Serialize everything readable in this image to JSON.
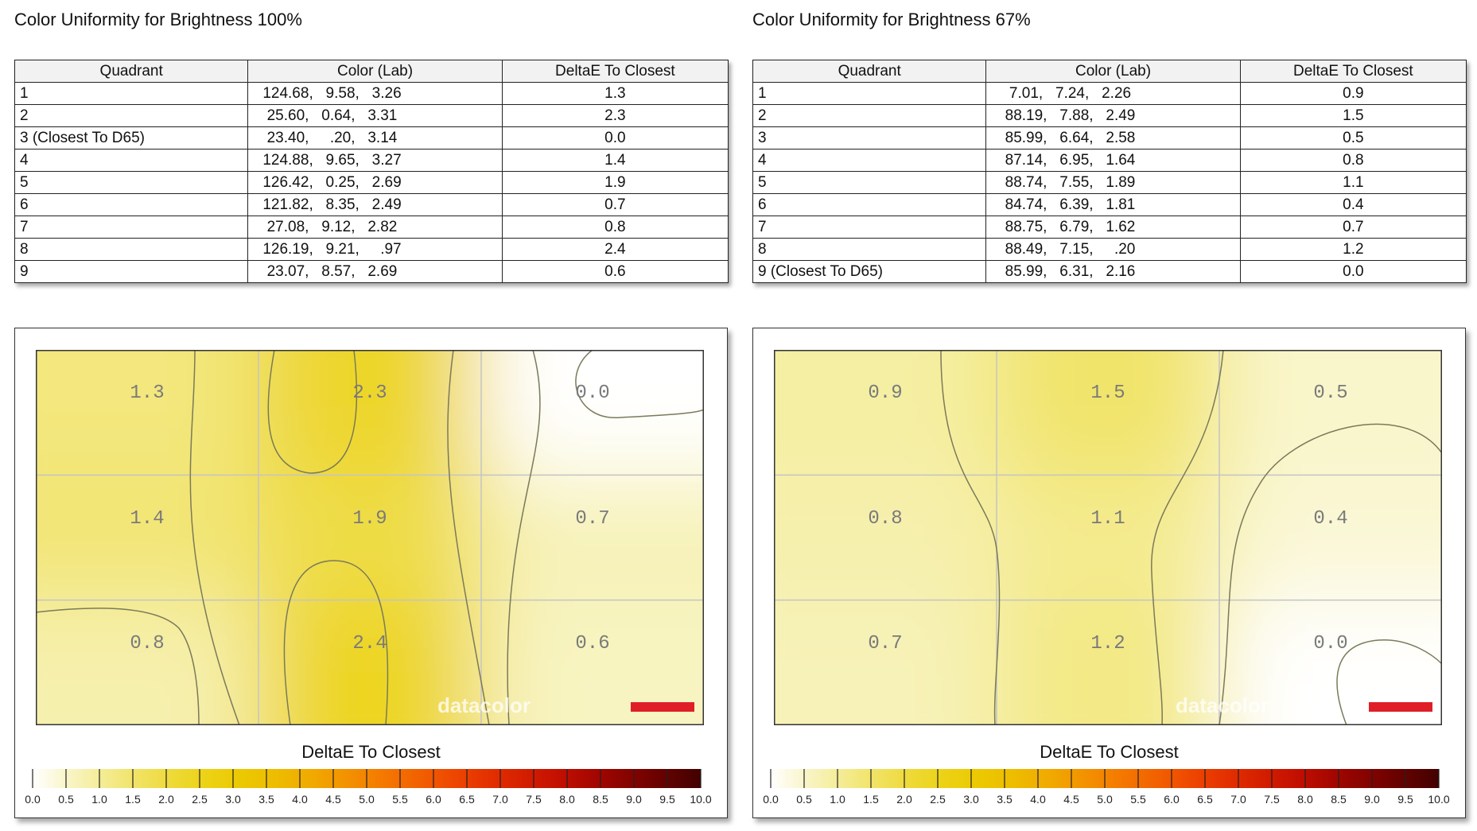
{
  "panels": [
    {
      "title": "Color Uniformity for Brightness 100%",
      "headers": [
        "Quadrant",
        "Color (Lab)",
        "DeltaE To Closest"
      ],
      "rows": [
        {
          "quadrant": "1",
          "lab": "124.68,   9.58,   3.26",
          "delta": "1.3"
        },
        {
          "quadrant": "2",
          "lab": " 25.60,   0.64,   3.31",
          "delta": "2.3"
        },
        {
          "quadrant": "3 (Closest To D65)",
          "lab": " 23.40,     .20,   3.14",
          "delta": "0.0"
        },
        {
          "quadrant": "4",
          "lab": "124.88,   9.65,   3.27",
          "delta": "1.4"
        },
        {
          "quadrant": "5",
          "lab": "126.42,   0.25,   2.69",
          "delta": "1.9"
        },
        {
          "quadrant": "6",
          "lab": "121.82,   8.35,   2.49",
          "delta": "0.7"
        },
        {
          "quadrant": "7",
          "lab": " 27.08,   9.12,   2.82",
          "delta": "0.8"
        },
        {
          "quadrant": "8",
          "lab": "126.19,   9.21,     .97",
          "delta": "2.4"
        },
        {
          "quadrant": "9",
          "lab": " 23.07,   8.57,   2.69",
          "delta": "0.6"
        }
      ],
      "legend_title": "DeltaE To Closest",
      "watermark": "datacolor"
    },
    {
      "title": "Color Uniformity for Brightness 67%",
      "headers": [
        "Quadrant",
        "Color (Lab)",
        "DeltaE To Closest"
      ],
      "rows": [
        {
          "quadrant": "1",
          "lab": "  7.01,   7.24,   2.26",
          "delta": "0.9"
        },
        {
          "quadrant": "2",
          "lab": " 88.19,   7.88,   2.49",
          "delta": "1.5"
        },
        {
          "quadrant": "3",
          "lab": " 85.99,   6.64,   2.58",
          "delta": "0.5"
        },
        {
          "quadrant": "4",
          "lab": " 87.14,   6.95,   1.64",
          "delta": "0.8"
        },
        {
          "quadrant": "5",
          "lab": " 88.74,   7.55,   1.89",
          "delta": "1.1"
        },
        {
          "quadrant": "6",
          "lab": " 84.74,   6.39,   1.81",
          "delta": "0.4"
        },
        {
          "quadrant": "7",
          "lab": " 88.75,   6.79,   1.62",
          "delta": "0.7"
        },
        {
          "quadrant": "8",
          "lab": " 88.49,   7.15,     .20",
          "delta": "1.2"
        },
        {
          "quadrant": "9 (Closest To D65)",
          "lab": " 85.99,   6.31,   2.16",
          "delta": "0.0"
        }
      ],
      "legend_title": "DeltaE To Closest",
      "watermark": "datacolor"
    }
  ],
  "chart_data": [
    {
      "type": "heatmap",
      "title": "Color Uniformity for Brightness 100%",
      "grid": [
        [
          1.3,
          2.3,
          0.0
        ],
        [
          1.4,
          1.9,
          0.7
        ],
        [
          0.8,
          2.4,
          0.6
        ]
      ],
      "colorbar_label": "DeltaE To Closest",
      "colorbar_range": [
        0,
        10
      ],
      "colorbar_ticks": [
        "0.0",
        "0.5",
        "1.0",
        "1.5",
        "2.0",
        "2.5",
        "3.0",
        "3.5",
        "4.0",
        "4.5",
        "5.0",
        "5.5",
        "6.0",
        "6.5",
        "7.0",
        "7.5",
        "8.0",
        "8.5",
        "9.0",
        "9.5",
        "10.0"
      ],
      "colorbar_colors": [
        "#ffffff",
        "#f9f5c8",
        "#f4ec94",
        "#f1e263",
        "#eed936",
        "#ecd213",
        "#ebc800",
        "#eebb00",
        "#f1a800",
        "#f39000",
        "#f47800",
        "#f26000",
        "#ee4600",
        "#e33000",
        "#d41e00",
        "#c20f00",
        "#a40600",
        "#840300",
        "#630200",
        "#420100"
      ]
    },
    {
      "type": "heatmap",
      "title": "Color Uniformity for Brightness 67%",
      "grid": [
        [
          0.9,
          1.5,
          0.5
        ],
        [
          0.8,
          1.1,
          0.4
        ],
        [
          0.7,
          1.2,
          0.0
        ]
      ],
      "colorbar_label": "DeltaE To Closest",
      "colorbar_range": [
        0,
        10
      ],
      "colorbar_ticks": [
        "0.0",
        "0.5",
        "1.0",
        "1.5",
        "2.0",
        "2.5",
        "3.0",
        "3.5",
        "4.0",
        "4.5",
        "5.0",
        "5.5",
        "6.0",
        "6.5",
        "7.0",
        "7.5",
        "8.0",
        "8.5",
        "9.0",
        "9.5",
        "10.0"
      ],
      "colorbar_colors": [
        "#ffffff",
        "#f9f5c8",
        "#f4ec94",
        "#f1e263",
        "#eed936",
        "#ecd213",
        "#ebc800",
        "#eebb00",
        "#f1a800",
        "#f39000",
        "#f47800",
        "#f26000",
        "#ee4600",
        "#e33000",
        "#d41e00",
        "#c20f00",
        "#a40600",
        "#840300",
        "#630200",
        "#420100"
      ]
    }
  ]
}
